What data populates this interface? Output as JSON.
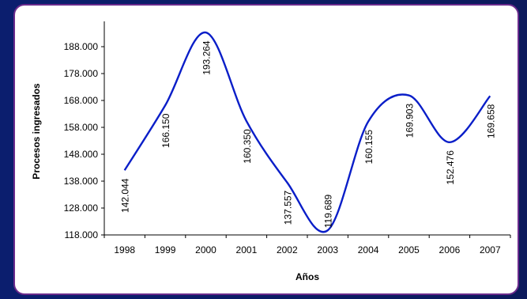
{
  "chart_data": {
    "type": "line",
    "title": "",
    "xlabel": "Años",
    "ylabel": "Procesos ingresados",
    "categories": [
      "1998",
      "1999",
      "2000",
      "2001",
      "2002",
      "2003",
      "2004",
      "2005",
      "2006",
      "2007"
    ],
    "series": [
      {
        "values": [
          142044,
          166150,
          193264,
          160350,
          137557,
          119689,
          160155,
          169903,
          152476,
          169658
        ],
        "data_labels": [
          "142.044",
          "166.150",
          "193.264",
          "160.350",
          "137.557",
          "119.689",
          "160.155",
          "169.903",
          "152.476",
          "169.658"
        ],
        "color": "#0a1ec8"
      }
    ],
    "y_ticks": [
      "118.000",
      "128.000",
      "138.000",
      "148.000",
      "158.000",
      "168.000",
      "178.000",
      "188.000"
    ],
    "y_tick_values": [
      118000,
      128000,
      138000,
      148000,
      158000,
      168000,
      178000,
      188000
    ],
    "ylim": [
      118000,
      188000
    ],
    "grid": false,
    "legend": "none",
    "smooth": true
  }
}
